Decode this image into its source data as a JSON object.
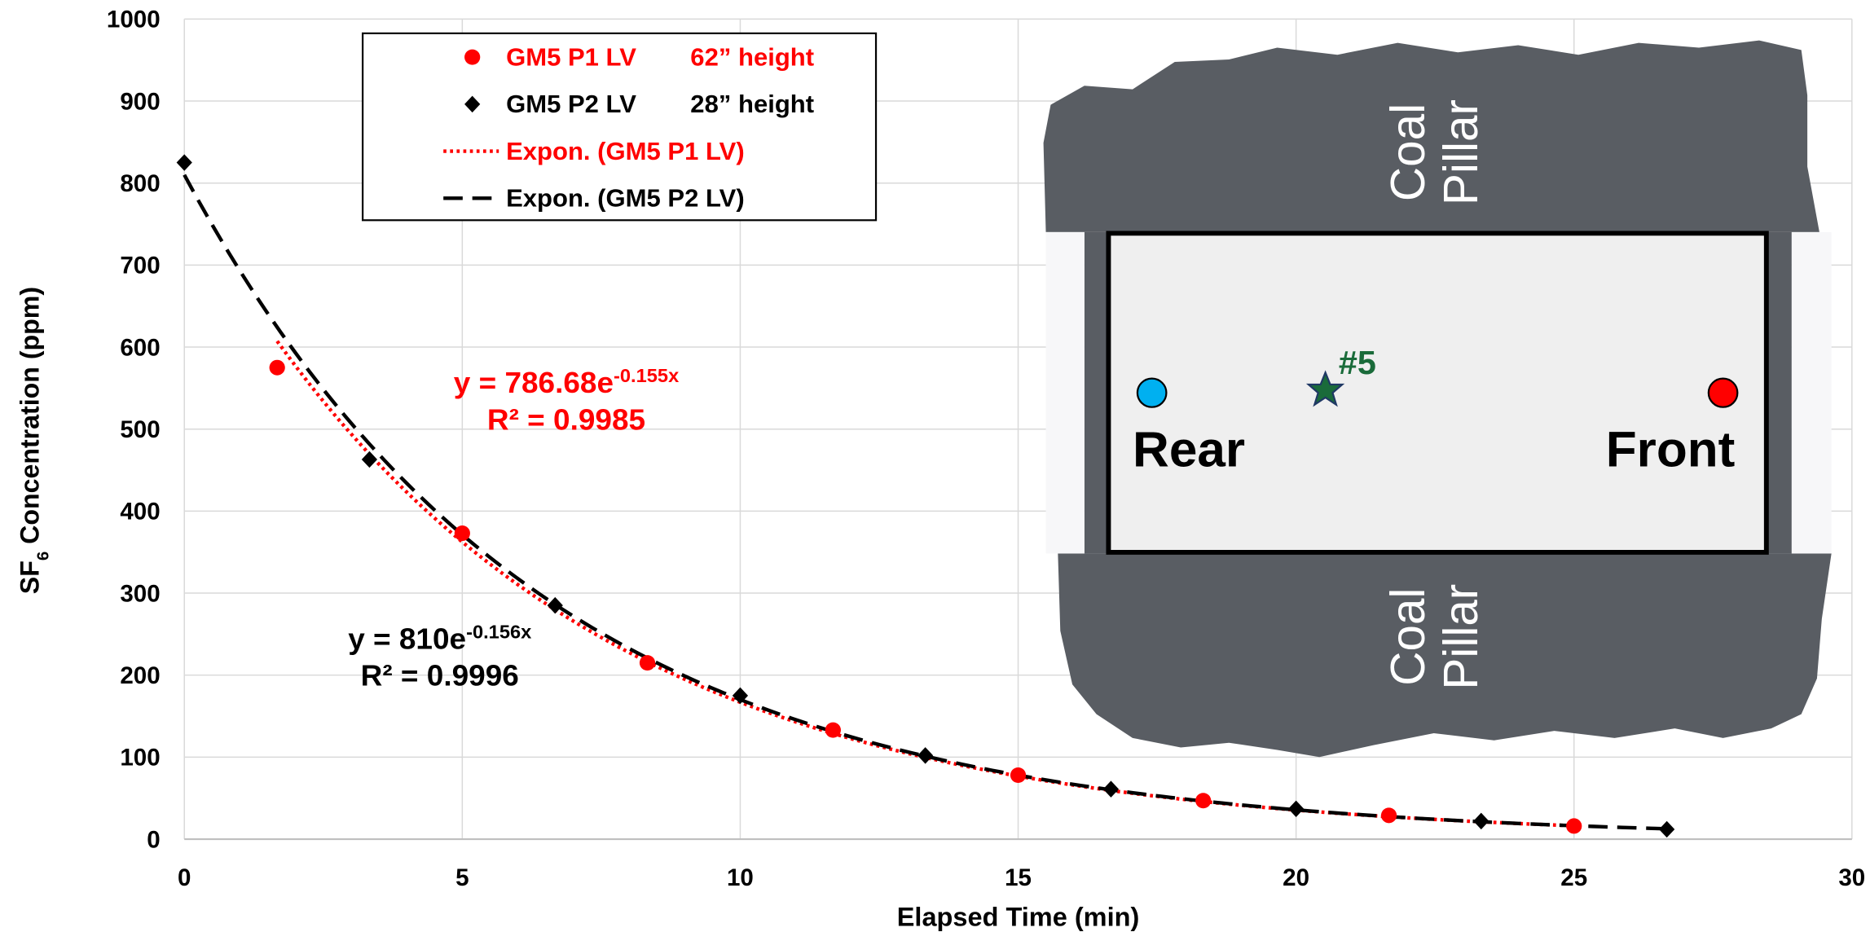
{
  "chart_data": {
    "type": "scatter",
    "ylabel": [
      "SF",
      "6",
      " Concentration (ppm)"
    ],
    "xlabel": "Elapsed Time (min)",
    "xlim": [
      0,
      30
    ],
    "xticks": [
      0,
      5,
      10,
      15,
      20,
      25,
      30
    ],
    "ylim": [
      0,
      1000
    ],
    "yticks": [
      0,
      100,
      200,
      300,
      400,
      500,
      600,
      700,
      800,
      900,
      1000
    ],
    "grid": true,
    "series": [
      {
        "name": "GM5 P1 LV",
        "note": "62” height",
        "color": "#ff0000",
        "marker": "circle",
        "x": [
          1.67,
          5,
          8.33,
          11.67,
          15,
          18.33,
          21.67,
          25
        ],
        "values": [
          575,
          373,
          215,
          133,
          78,
          47,
          29,
          16
        ],
        "trendline": {
          "name": "Expon. (GM5 P1 LV)",
          "a": 786.68,
          "b": -0.155,
          "style": "dotted",
          "equation": [
            "y = 786.68e",
            "-0.155x"
          ],
          "r2": "R² = 0.9985"
        }
      },
      {
        "name": "GM5 P2 LV",
        "note": "28” height",
        "color": "#000000",
        "marker": "diamond",
        "x": [
          0,
          3.33,
          6.67,
          10,
          13.33,
          16.67,
          20,
          23.33,
          26.67
        ],
        "values": [
          825,
          463,
          285,
          175,
          102,
          61,
          37,
          22,
          12
        ],
        "trendline": {
          "name": "Expon. (GM5 P2 LV)",
          "a": 810,
          "b": -0.156,
          "style": "dashed",
          "equation": [
            "y = 810e",
            "-0.156x"
          ],
          "r2": "R² = 0.9996"
        }
      }
    ]
  },
  "inset": {
    "top_pillar": [
      "Coal",
      "Pillar"
    ],
    "bottom_pillar": [
      "Coal",
      "Pillar"
    ],
    "rear": "Rear",
    "front": "Front",
    "location": "#5"
  }
}
